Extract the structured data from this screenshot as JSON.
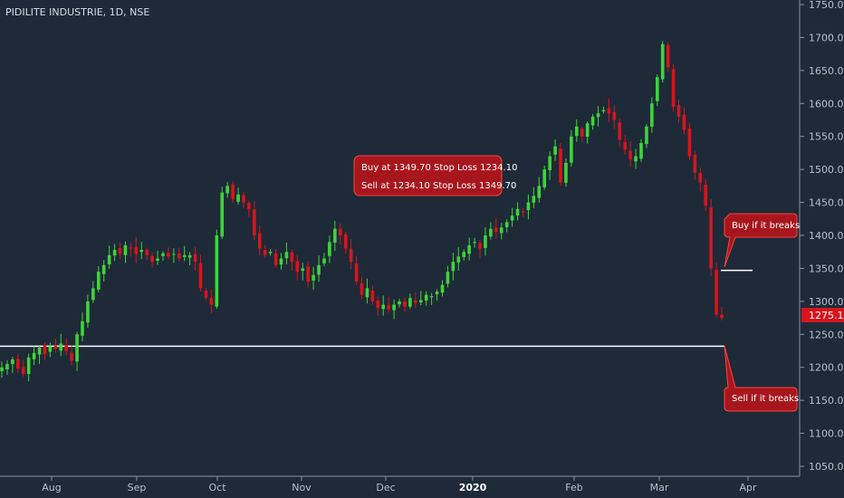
{
  "title": "PIDILITE INDUSTRIE, 1D, NSE",
  "price_tag": "1275.10",
  "annotations": {
    "buy_sell_box": [
      "Buy at 1349.70 Stop Loss 1234.10",
      "Sell at 1234.10 Stop Loss 1349.70"
    ],
    "buy_callout": "Buy if it breaks",
    "sell_callout": "Sell if it breaks"
  },
  "colors": {
    "background": "#1e2a38",
    "up": "#3fd43a",
    "down": "#d8141c",
    "callout_fill": "#a8161d",
    "callout_border": "#ff4040",
    "level_line": "#ffffff"
  },
  "chart_data": {
    "type": "candlestick",
    "y_ticks": [
      "1750.00",
      "1700.00",
      "1650.00",
      "1600.00",
      "1550.00",
      "1500.00",
      "1450.00",
      "1400.00",
      "1350.00",
      "1300.00",
      "1250.00",
      "1200.00",
      "1150.00",
      "1100.00",
      "1050.00"
    ],
    "ylim": [
      1030,
      1765
    ],
    "x_ticks": [
      "Aug",
      "Sep",
      "Oct",
      "Nov",
      "Dec",
      "2020",
      "Feb",
      "Mar",
      "Apr"
    ],
    "horizontal_levels": [
      {
        "price": 1232,
        "description": "support line"
      },
      {
        "price": 1347,
        "description": "resistance line"
      }
    ],
    "ohlc_path_close": [
      1200,
      1205,
      1212,
      1198,
      1190,
      1215,
      1222,
      1230,
      1220,
      1232,
      1228,
      1236,
      1225,
      1210,
      1250,
      1270,
      1300,
      1320,
      1345,
      1355,
      1370,
      1378,
      1372,
      1385,
      1380,
      1372,
      1378,
      1370,
      1360,
      1365,
      1373,
      1368,
      1372,
      1365,
      1370,
      1370,
      1360,
      1320,
      1305,
      1295,
      1400,
      1465,
      1475,
      1455,
      1462,
      1450,
      1440,
      1400,
      1380,
      1370,
      1375,
      1355,
      1365,
      1375,
      1360,
      1345,
      1350,
      1330,
      1340,
      1355,
      1365,
      1390,
      1410,
      1400,
      1380,
      1360,
      1330,
      1310,
      1320,
      1300,
      1290,
      1295,
      1288,
      1295,
      1300,
      1292,
      1305,
      1298,
      1302,
      1310,
      1308,
      1315,
      1325,
      1345,
      1360,
      1368,
      1375,
      1385,
      1390,
      1380,
      1400,
      1410,
      1405,
      1412,
      1420,
      1430,
      1440,
      1435,
      1450,
      1460,
      1475,
      1500,
      1520,
      1535,
      1480,
      1510,
      1550,
      1565,
      1550,
      1570,
      1580,
      1585,
      1590,
      1585,
      1575,
      1545,
      1530,
      1515,
      1520,
      1540,
      1565,
      1600,
      1640,
      1690,
      1655,
      1595,
      1580,
      1560,
      1520,
      1495,
      1480,
      1445,
      1350,
      1280,
      1275
    ]
  }
}
